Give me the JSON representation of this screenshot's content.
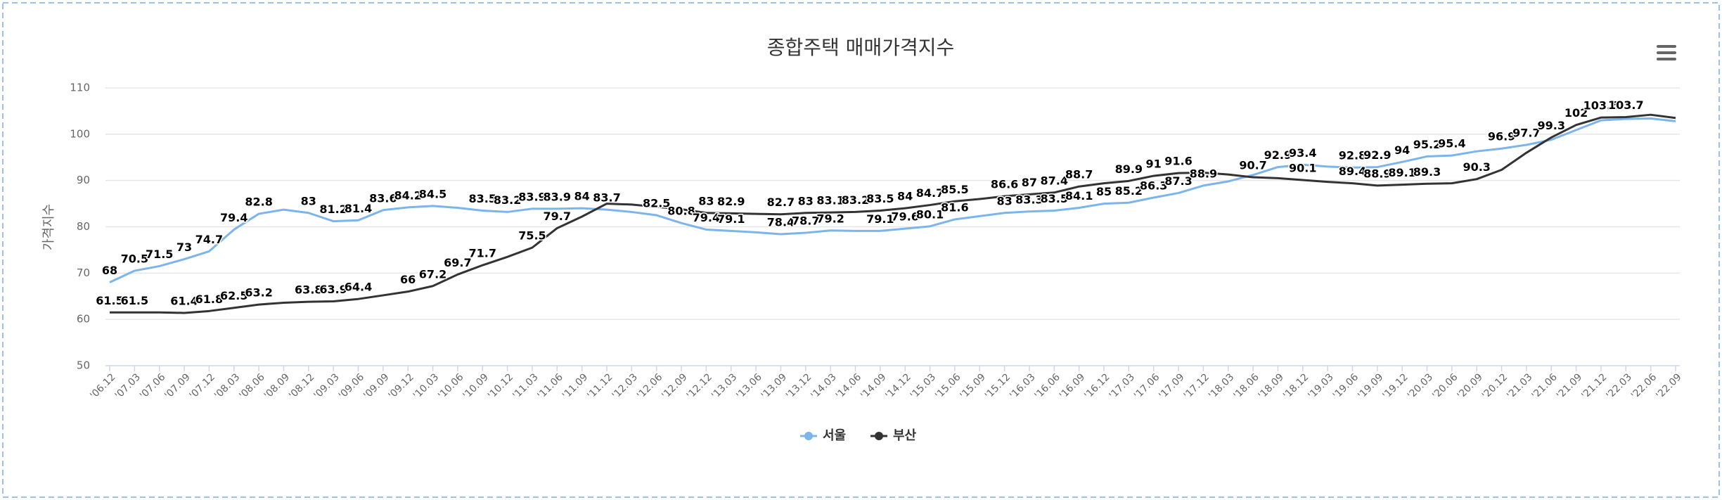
{
  "chart_data": {
    "type": "line",
    "title": "종합주택 매매가격지수",
    "y_label": "가격지수",
    "categories": [
      "'06.12",
      "'07.03",
      "'07.06",
      "'07.09",
      "'07.12",
      "'08.03",
      "'08.06",
      "'08.09",
      "'08.12",
      "'09.03",
      "'09.06",
      "'09.09",
      "'09.12",
      "'10.03",
      "'10.06",
      "'10.09",
      "'10.12",
      "'11.03",
      "'11.06",
      "'11.09",
      "'11.12",
      "'12.03",
      "'12.06",
      "'12.09",
      "'12.12",
      "'13.03",
      "'13.06",
      "'13.09",
      "'13.12",
      "'14.03",
      "'14.06",
      "'14.09",
      "'14.12",
      "'15.03",
      "'15.06",
      "'15.09",
      "'15.12",
      "'16.03",
      "'16.06",
      "'16.09",
      "'16.12",
      "'17.03",
      "'17.06",
      "'17.09",
      "'17.12",
      "'18.03",
      "'18.06",
      "'18.09",
      "'18.12",
      "'19.03",
      "'19.06",
      "'19.09",
      "'19.12",
      "'20.03",
      "'20.06",
      "'20.09",
      "'20.12",
      "'21.03",
      "'21.06",
      "'21.09",
      "'21.12",
      "'22.03",
      "'22.06",
      "'22.09"
    ],
    "series": [
      {
        "name": "서울",
        "color": "#7cb5ec",
        "values": [
          68,
          70.5,
          71.5,
          73,
          74.7,
          79.4,
          82.8,
          83.7,
          83,
          81.2,
          81.4,
          83.6,
          84.2,
          84.5,
          84.1,
          83.5,
          83.2,
          83.9,
          83.9,
          84,
          83.7,
          83.2,
          82.5,
          80.8,
          79.4,
          79.1,
          78.8,
          78.4,
          78.7,
          79.2,
          79.1,
          79.1,
          79.6,
          80.1,
          81.6,
          82.3,
          83,
          83.3,
          83.5,
          84.1,
          85,
          85.2,
          86.3,
          87.3,
          88.9,
          89.8,
          91.2,
          92.9,
          93.4,
          93,
          92.8,
          92.9,
          94,
          95.2,
          95.4,
          96.3,
          96.9,
          97.7,
          98.8,
          100.9,
          103,
          103.3,
          103.4,
          102.8
        ],
        "value_labels": [
          "68",
          "70.5",
          "71.5",
          "73",
          "74.7",
          "79.4",
          "82.8",
          null,
          "83",
          "81.2",
          "81.4",
          "83.6",
          "84.2",
          "84.5",
          null,
          "83.5",
          "83.2",
          "83.9",
          "83.9",
          "84",
          "83.7",
          null,
          "82.5",
          "80.8",
          "79.4",
          "79.1",
          null,
          "78.4",
          "78.7",
          "79.2",
          null,
          "79.1",
          "79.6",
          "80.1",
          "81.6",
          null,
          "83",
          "83.3",
          "83.5",
          "84.1",
          "85",
          "85.2",
          "86.3",
          "87.3",
          "88.9",
          null,
          null,
          "92.9",
          "93.4",
          null,
          "92.8",
          "92.9",
          "94",
          "95.2",
          "95.4",
          null,
          "96.9",
          "97.7",
          null,
          null,
          null,
          null,
          null,
          null
        ]
      },
      {
        "name": "부산",
        "color": "#333333",
        "values": [
          61.5,
          61.5,
          61.5,
          61.4,
          61.8,
          62.5,
          63.2,
          63.6,
          63.8,
          63.9,
          64.4,
          65.2,
          66,
          67.2,
          69.7,
          71.7,
          73.5,
          75.5,
          79.7,
          82.2,
          85,
          84.8,
          84.3,
          83.8,
          83,
          82.9,
          82.8,
          82.7,
          83,
          83.1,
          83.2,
          83.5,
          84,
          84.7,
          85.5,
          86,
          86.6,
          87,
          87.4,
          88.7,
          89.4,
          89.9,
          91,
          91.6,
          91.7,
          91.3,
          90.7,
          90.5,
          90.1,
          89.7,
          89.4,
          88.9,
          89.1,
          89.3,
          89.4,
          90.3,
          92.3,
          96,
          99.3,
          102,
          103.6,
          103.7,
          104.2,
          103.5
        ],
        "value_labels": [
          "61.5",
          "61.5",
          null,
          "61.4",
          "61.8",
          "62.5",
          "63.2",
          null,
          "63.8",
          "63.9",
          "64.4",
          null,
          "66",
          "67.2",
          "69.7",
          "71.7",
          null,
          "75.5",
          "79.7",
          null,
          null,
          null,
          null,
          null,
          "83",
          "82.9",
          null,
          "82.7",
          "83",
          "83.1",
          "83.2",
          "83.5",
          "84",
          "84.7",
          "85.5",
          null,
          "86.6",
          "87",
          "87.4",
          "88.7",
          null,
          "89.9",
          "91",
          "91.6",
          null,
          null,
          "90.7",
          null,
          "90.1",
          null,
          "89.4",
          "88.9",
          "89.1",
          "89.3",
          null,
          "90.3",
          null,
          null,
          "99.3",
          "102",
          "103.6",
          "103.7",
          null,
          null
        ]
      }
    ],
    "ylim": [
      50,
      110
    ],
    "yticks": [
      50,
      60,
      70,
      80,
      90,
      100,
      110
    ],
    "grid": true,
    "legend": "bottom"
  }
}
